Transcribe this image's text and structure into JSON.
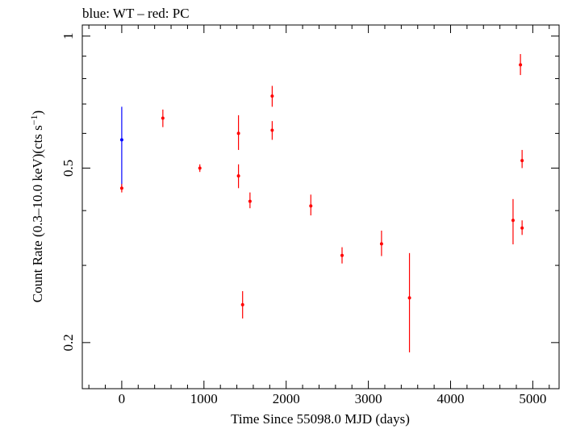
{
  "chart_data": {
    "type": "scatter",
    "title": "blue: WT – red: PC",
    "xlabel": "Time Since 55098.0 MJD (days)",
    "ylabel_main": "Count Rate (0.3–10.0 keV)(cts s",
    "ylabel_sup": "−1",
    "ylabel_close": ")",
    "xlim": [
      -480,
      5320
    ],
    "ylim": [
      0.157,
      1.06
    ],
    "yscale": "log",
    "x_ticks": [
      0,
      1000,
      2000,
      3000,
      4000,
      5000
    ],
    "x_tick_labels": [
      "0",
      "1000",
      "2000",
      "3000",
      "4000",
      "5000"
    ],
    "x_minor_step": 200,
    "y_ticks": [
      0.2,
      0.5,
      1
    ],
    "y_tick_labels": [
      "0.2",
      "0.5",
      "1"
    ],
    "y_minor_ticks": [
      0.3,
      0.4,
      0.6,
      0.7,
      0.8,
      0.9
    ],
    "colors": {
      "WT": "#0000ff",
      "PC": "#ff0000"
    },
    "series": [
      {
        "name": "WT",
        "color": "#0000ff",
        "points": [
          {
            "x": 0,
            "y": 0.58,
            "ylo": 0.45,
            "yhi": 0.69
          }
        ]
      },
      {
        "name": "PC",
        "color": "#ff0000",
        "points": [
          {
            "x": 0,
            "y": 0.45,
            "ylo": 0.44,
            "yhi": 0.46
          },
          {
            "x": 500,
            "y": 0.65,
            "ylo": 0.62,
            "yhi": 0.68
          },
          {
            "x": 950,
            "y": 0.5,
            "ylo": 0.49,
            "yhi": 0.51
          },
          {
            "x": 1420,
            "y": 0.6,
            "ylo": 0.55,
            "yhi": 0.66
          },
          {
            "x": 1420,
            "y": 0.48,
            "ylo": 0.45,
            "yhi": 0.51
          },
          {
            "x": 1470,
            "y": 0.244,
            "ylo": 0.227,
            "yhi": 0.262
          },
          {
            "x": 1560,
            "y": 0.42,
            "ylo": 0.405,
            "yhi": 0.44
          },
          {
            "x": 1830,
            "y": 0.61,
            "ylo": 0.58,
            "yhi": 0.64
          },
          {
            "x": 1830,
            "y": 0.73,
            "ylo": 0.69,
            "yhi": 0.77
          },
          {
            "x": 2300,
            "y": 0.41,
            "ylo": 0.39,
            "yhi": 0.435
          },
          {
            "x": 2680,
            "y": 0.316,
            "ylo": 0.303,
            "yhi": 0.33
          },
          {
            "x": 3160,
            "y": 0.336,
            "ylo": 0.315,
            "yhi": 0.36
          },
          {
            "x": 3500,
            "y": 0.253,
            "ylo": 0.19,
            "yhi": 0.32
          },
          {
            "x": 4760,
            "y": 0.38,
            "ylo": 0.335,
            "yhi": 0.425
          },
          {
            "x": 4850,
            "y": 0.86,
            "ylo": 0.815,
            "yhi": 0.91
          },
          {
            "x": 4870,
            "y": 0.52,
            "ylo": 0.5,
            "yhi": 0.55
          },
          {
            "x": 4870,
            "y": 0.365,
            "ylo": 0.352,
            "yhi": 0.38
          }
        ]
      }
    ]
  }
}
